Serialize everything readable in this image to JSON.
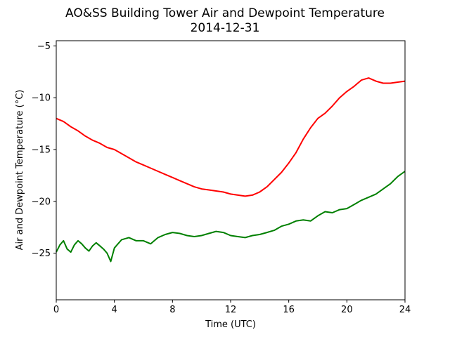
{
  "chart_data": {
    "type": "line",
    "title": "AO&SS Building Tower Air and Dewpoint Temperature",
    "subtitle": "2014-12-31",
    "xlabel": "Time (UTC)",
    "ylabel": "Air and Dewpoint Temperature (°C)",
    "xlim": [
      0,
      24
    ],
    "ylim": [
      -29.5,
      -4.5
    ],
    "xticks": [
      0,
      4,
      8,
      12,
      16,
      20,
      24
    ],
    "xtick_labels": [
      "0",
      "4",
      "8",
      "12",
      "16",
      "20",
      "24"
    ],
    "yticks": [
      -25,
      -20,
      -15,
      -10,
      -5
    ],
    "ytick_labels": [
      "−25",
      "−20",
      "−15",
      "−10",
      "−5"
    ],
    "grid": false,
    "series": [
      {
        "color": "#ff0000",
        "x": [
          0,
          0.5,
          1,
          1.5,
          2,
          2.5,
          3,
          3.5,
          4,
          4.5,
          5,
          5.5,
          6,
          6.5,
          7,
          7.5,
          8,
          8.5,
          9,
          9.5,
          10,
          10.5,
          11,
          11.5,
          12,
          12.5,
          13,
          13.5,
          14,
          14.5,
          15,
          15.5,
          16,
          16.5,
          17,
          17.5,
          18,
          18.5,
          19,
          19.5,
          20,
          20.5,
          21,
          21.5,
          22,
          22.5,
          23,
          23.5,
          24
        ],
        "values": [
          -12.0,
          -12.3,
          -12.8,
          -13.2,
          -13.7,
          -14.1,
          -14.4,
          -14.8,
          -15.0,
          -15.4,
          -15.8,
          -16.2,
          -16.5,
          -16.8,
          -17.1,
          -17.4,
          -17.7,
          -18.0,
          -18.3,
          -18.6,
          -18.8,
          -18.9,
          -19.0,
          -19.1,
          -19.3,
          -19.4,
          -19.5,
          -19.4,
          -19.1,
          -18.6,
          -17.9,
          -17.2,
          -16.3,
          -15.3,
          -14.0,
          -12.9,
          -12.0,
          -11.5,
          -10.8,
          -10.0,
          -9.4,
          -8.9,
          -8.3,
          -8.1,
          -8.4,
          -8.6,
          -8.6,
          -8.5,
          -8.4
        ]
      },
      {
        "color": "#008000",
        "x": [
          0,
          0.25,
          0.5,
          0.75,
          1,
          1.25,
          1.5,
          1.75,
          2,
          2.25,
          2.5,
          2.75,
          3,
          3.25,
          3.5,
          3.75,
          4,
          4.5,
          5,
          5.5,
          6,
          6.5,
          7,
          7.5,
          8,
          8.5,
          9,
          9.5,
          10,
          10.5,
          11,
          11.5,
          12,
          12.5,
          13,
          13.5,
          14,
          14.5,
          15,
          15.5,
          16,
          16.5,
          17,
          17.5,
          18,
          18.5,
          19,
          19.5,
          20,
          20.5,
          21,
          21.5,
          22,
          22.5,
          23,
          23.5,
          24
        ],
        "values": [
          -24.9,
          -24.2,
          -23.8,
          -24.6,
          -24.9,
          -24.2,
          -23.8,
          -24.1,
          -24.5,
          -24.8,
          -24.3,
          -24.0,
          -24.3,
          -24.6,
          -25.0,
          -25.8,
          -24.5,
          -23.7,
          -23.5,
          -23.8,
          -23.8,
          -24.1,
          -23.5,
          -23.2,
          -23.0,
          -23.1,
          -23.3,
          -23.4,
          -23.3,
          -23.1,
          -22.9,
          -23.0,
          -23.3,
          -23.4,
          -23.5,
          -23.3,
          -23.2,
          -23.0,
          -22.8,
          -22.4,
          -22.2,
          -21.9,
          -21.8,
          -21.9,
          -21.4,
          -21.0,
          -21.1,
          -20.8,
          -20.7,
          -20.3,
          -19.9,
          -19.6,
          -19.3,
          -18.8,
          -18.3,
          -17.6,
          -17.1
        ]
      }
    ]
  }
}
